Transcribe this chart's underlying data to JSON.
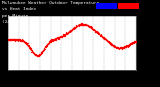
{
  "bg_color": "#000000",
  "plot_bg_color": "#ffffff",
  "grid_color": "#aaaaaa",
  "temp_color": "#ff0000",
  "ylim": [
    40,
    90
  ],
  "yticks": [
    40,
    50,
    60,
    70,
    80,
    90
  ],
  "tick_fontsize": 3.0,
  "marker_size": 0.8,
  "num_points": 1440,
  "legend_blue": "#0000ff",
  "legend_red": "#ff0000",
  "title_color": "#ffffff"
}
